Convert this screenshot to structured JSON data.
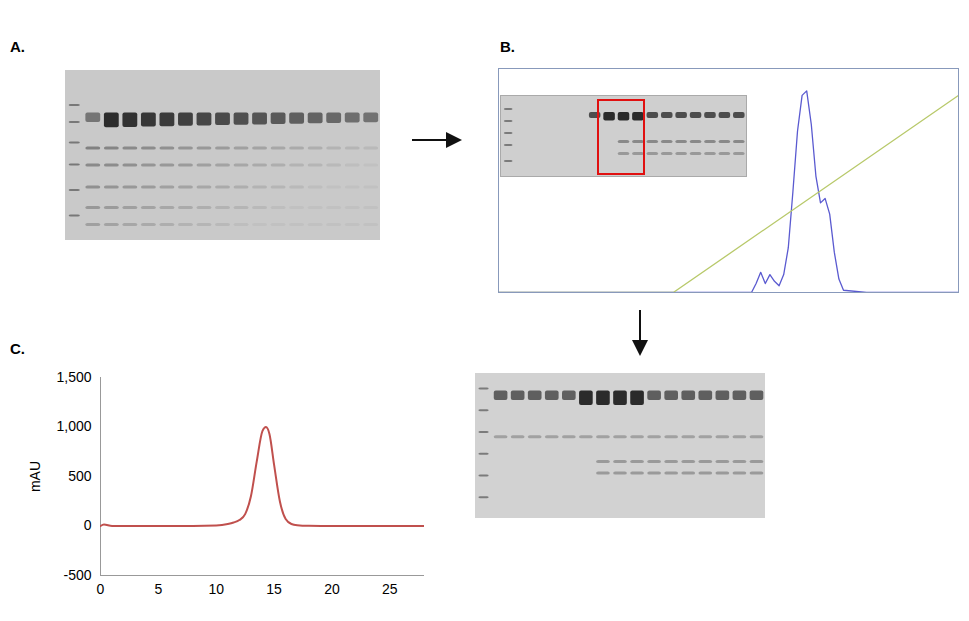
{
  "panel_labels": [
    "A.",
    "B.",
    "C."
  ],
  "chart_data": [
    {
      "type": "line",
      "tick_labels": false,
      "grid": false,
      "xlim": [
        0,
        100
      ],
      "ylim": [
        0,
        100
      ],
      "series": [
        {
          "color": "#5a5ad0",
          "x": [
            0,
            40,
            55,
            56,
            57,
            58,
            59,
            60,
            61,
            62,
            63,
            64,
            65,
            66,
            67,
            68,
            69,
            70,
            71,
            72,
            73,
            74,
            75,
            80,
            100
          ],
          "values": [
            0,
            0,
            0,
            4,
            9,
            4,
            8,
            5,
            3,
            8,
            20,
            45,
            72,
            88,
            90,
            75,
            52,
            40,
            42,
            35,
            18,
            6,
            1,
            0,
            0
          ]
        },
        {
          "color": "#b8c96a",
          "x": [
            0,
            38,
            100
          ],
          "values": [
            0,
            0,
            88
          ]
        }
      ]
    },
    {
      "type": "line",
      "y_label": "mAU",
      "color": "#c0504d",
      "grid": false,
      "x": [
        0,
        0.3,
        1,
        5,
        8,
        10,
        11,
        11.5,
        12,
        12.5,
        13,
        13.5,
        14,
        14.3,
        14.6,
        15,
        15.5,
        16,
        16.5,
        17,
        18,
        20,
        25,
        28
      ],
      "values": [
        0,
        15,
        0,
        0,
        0,
        5,
        20,
        35,
        60,
        120,
        300,
        650,
        960,
        1000,
        930,
        620,
        250,
        70,
        20,
        8,
        2,
        0,
        0,
        0
      ],
      "xlim": [
        0,
        28
      ],
      "xticks": [
        0,
        5,
        10,
        15,
        20,
        25
      ],
      "ylim": [
        -500,
        1500
      ],
      "yticks": [
        -500,
        0,
        500,
        {
          "value": 1000,
          "label": "1,000"
        },
        {
          "value": 1500,
          "label": "1,500"
        }
      ]
    }
  ]
}
